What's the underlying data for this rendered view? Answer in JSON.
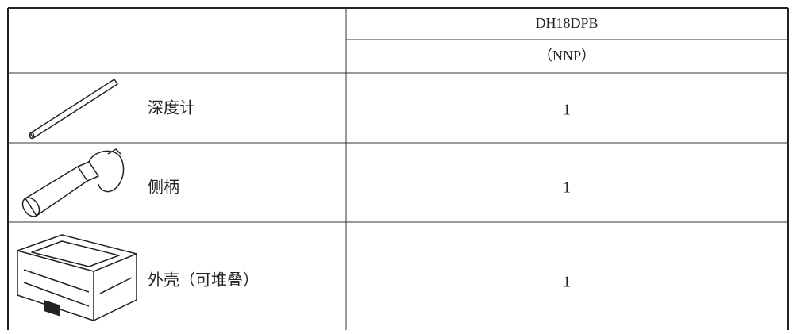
{
  "header": {
    "model": "DH18DPB",
    "variant": "（NNP）"
  },
  "table": {
    "rows": [
      {
        "name": "深度计",
        "quantity": 1
      },
      {
        "name": "侧柄",
        "quantity": 1
      },
      {
        "name": "外壳（可堆叠）",
        "quantity": 1
      }
    ]
  }
}
